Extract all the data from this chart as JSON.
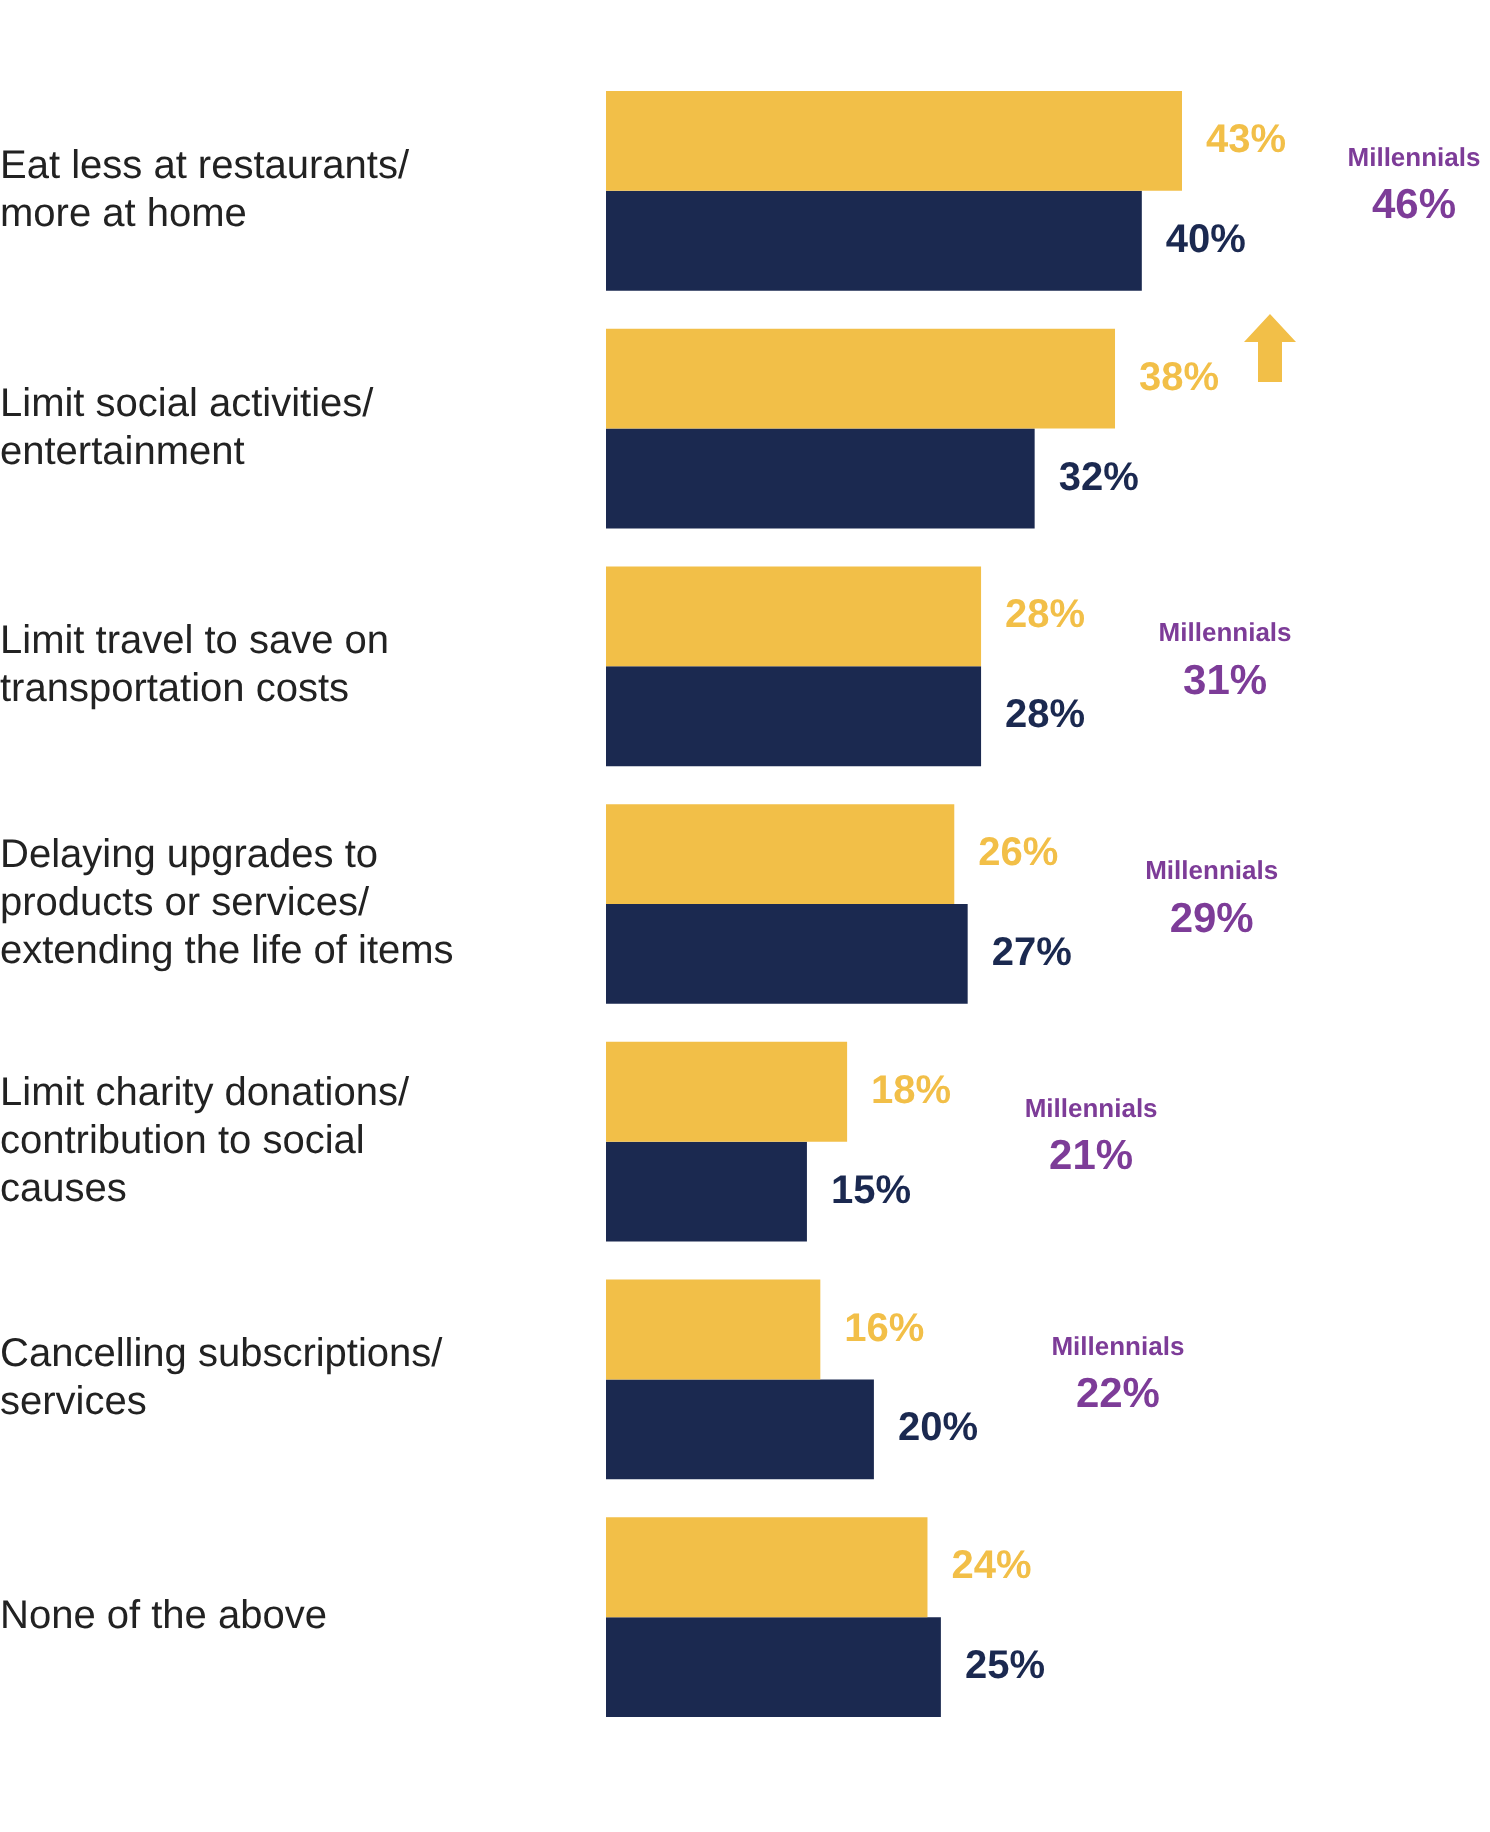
{
  "chart_data": {
    "type": "bar",
    "orientation": "horizontal",
    "categories": [
      "Eat less at restaurants/ more at home",
      "Limit social activities/ entertainment",
      "Limit travel to save on transportation costs",
      "Delaying upgrades to products or services/ extending the life of items",
      "Limit charity donations/ contribution to social causes",
      "Cancelling subscriptions/ services",
      "None of the above"
    ],
    "series": [
      {
        "color": "#f2bf48",
        "values": [
          43,
          38,
          28,
          26,
          18,
          16,
          24
        ],
        "value_labels": [
          "43%",
          "38%",
          "28%",
          "26%",
          "18%",
          "16%",
          "24%"
        ]
      },
      {
        "color": "#1b2950",
        "values": [
          40,
          32,
          28,
          27,
          15,
          20,
          25
        ],
        "value_labels": [
          "40%",
          "32%",
          "28%",
          "27%",
          "15%",
          "20%",
          "25%"
        ]
      }
    ],
    "tick_labels": "y",
    "grid": false,
    "legend": false,
    "annotations": [
      "Millennials\n46%",
      "Millennials\n31%",
      "Millennials\n29%",
      "Millennials\n21%",
      "Millennials\n22%"
    ]
  }
}
